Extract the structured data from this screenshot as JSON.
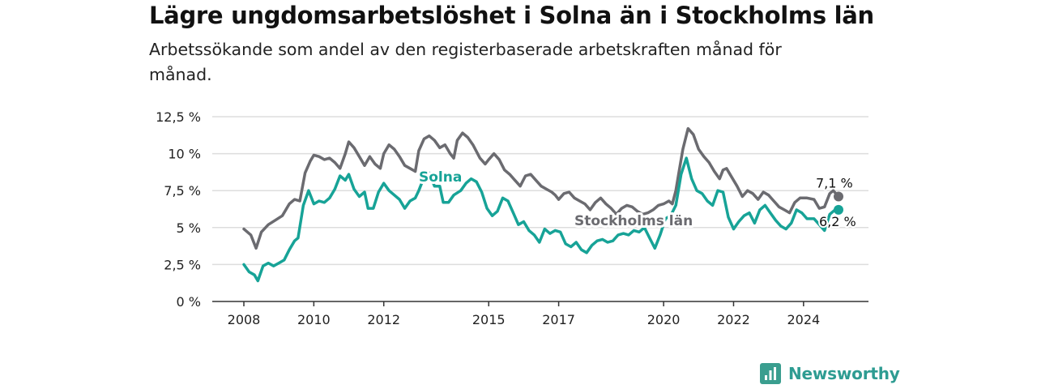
{
  "title": "Lägre ungdomsarbetslöshet i Solna än i Stockholms län",
  "subtitle": "Arbetssökande som andel av den registerbaserade arbetskraften månad för månad.",
  "brand": "Newsworthy",
  "colors": {
    "solna": "#17a397",
    "stockholm": "#6b6b70",
    "grid": "#dddddd",
    "axis": "#333333"
  },
  "chart_data": {
    "type": "line",
    "ylim": [
      0,
      12.5
    ],
    "y_ticks": [
      {
        "value": 0,
        "label": "0 %"
      },
      {
        "value": 2.5,
        "label": "2,5 %"
      },
      {
        "value": 5,
        "label": "5 %"
      },
      {
        "value": 7.5,
        "label": "7,5 %"
      },
      {
        "value": 10,
        "label": "10 %"
      },
      {
        "value": 12.5,
        "label": "12,5 %"
      }
    ],
    "x_ticks": [
      {
        "value": 2008,
        "label": "2008"
      },
      {
        "value": 2010,
        "label": "2010"
      },
      {
        "value": 2012,
        "label": "2012"
      },
      {
        "value": 2015,
        "label": "2015"
      },
      {
        "value": 2017,
        "label": "2017"
      },
      {
        "value": 2020,
        "label": "2020"
      },
      {
        "value": 2022,
        "label": "2022"
      },
      {
        "value": 2024,
        "label": "2024"
      }
    ],
    "grid": true,
    "series": [
      {
        "name": "Stockholms län",
        "end_label": "7,1 %",
        "points": [
          [
            2008.0,
            4.9
          ],
          [
            2008.2,
            4.5
          ],
          [
            2008.35,
            3.6
          ],
          [
            2008.5,
            4.7
          ],
          [
            2008.7,
            5.2
          ],
          [
            2008.9,
            5.5
          ],
          [
            2009.1,
            5.8
          ],
          [
            2009.3,
            6.6
          ],
          [
            2009.45,
            6.9
          ],
          [
            2009.6,
            6.8
          ],
          [
            2009.75,
            8.7
          ],
          [
            2009.9,
            9.5
          ],
          [
            2010.0,
            9.9
          ],
          [
            2010.15,
            9.8
          ],
          [
            2010.3,
            9.6
          ],
          [
            2010.45,
            9.7
          ],
          [
            2010.6,
            9.4
          ],
          [
            2010.75,
            9.0
          ],
          [
            2010.9,
            10.0
          ],
          [
            2011.0,
            10.8
          ],
          [
            2011.15,
            10.4
          ],
          [
            2011.3,
            9.8
          ],
          [
            2011.45,
            9.2
          ],
          [
            2011.6,
            9.8
          ],
          [
            2011.75,
            9.3
          ],
          [
            2011.9,
            9.0
          ],
          [
            2012.0,
            10.0
          ],
          [
            2012.15,
            10.6
          ],
          [
            2012.3,
            10.3
          ],
          [
            2012.45,
            9.8
          ],
          [
            2012.6,
            9.2
          ],
          [
            2012.75,
            9.0
          ],
          [
            2012.9,
            8.8
          ],
          [
            2013.0,
            10.2
          ],
          [
            2013.15,
            11.0
          ],
          [
            2013.3,
            11.2
          ],
          [
            2013.45,
            10.9
          ],
          [
            2013.6,
            10.4
          ],
          [
            2013.75,
            10.6
          ],
          [
            2013.9,
            10.0
          ],
          [
            2014.0,
            9.7
          ],
          [
            2014.1,
            10.9
          ],
          [
            2014.25,
            11.4
          ],
          [
            2014.4,
            11.1
          ],
          [
            2014.55,
            10.6
          ],
          [
            2014.75,
            9.7
          ],
          [
            2014.9,
            9.3
          ],
          [
            2015.0,
            9.6
          ],
          [
            2015.15,
            10.0
          ],
          [
            2015.3,
            9.6
          ],
          [
            2015.45,
            8.9
          ],
          [
            2015.6,
            8.6
          ],
          [
            2015.75,
            8.2
          ],
          [
            2015.9,
            7.8
          ],
          [
            2016.05,
            8.5
          ],
          [
            2016.2,
            8.6
          ],
          [
            2016.35,
            8.2
          ],
          [
            2016.5,
            7.8
          ],
          [
            2016.65,
            7.6
          ],
          [
            2016.8,
            7.4
          ],
          [
            2016.9,
            7.2
          ],
          [
            2017.0,
            6.9
          ],
          [
            2017.15,
            7.3
          ],
          [
            2017.3,
            7.4
          ],
          [
            2017.45,
            7.0
          ],
          [
            2017.6,
            6.8
          ],
          [
            2017.75,
            6.6
          ],
          [
            2017.9,
            6.2
          ],
          [
            2018.05,
            6.7
          ],
          [
            2018.2,
            7.0
          ],
          [
            2018.35,
            6.6
          ],
          [
            2018.5,
            6.3
          ],
          [
            2018.65,
            5.9
          ],
          [
            2018.8,
            6.3
          ],
          [
            2018.95,
            6.5
          ],
          [
            2019.1,
            6.4
          ],
          [
            2019.25,
            6.1
          ],
          [
            2019.4,
            5.9
          ],
          [
            2019.55,
            6.0
          ],
          [
            2019.7,
            6.2
          ],
          [
            2019.85,
            6.5
          ],
          [
            2020.0,
            6.6
          ],
          [
            2020.15,
            6.8
          ],
          [
            2020.25,
            6.6
          ],
          [
            2020.35,
            7.5
          ],
          [
            2020.45,
            8.9
          ],
          [
            2020.55,
            10.3
          ],
          [
            2020.7,
            11.7
          ],
          [
            2020.85,
            11.3
          ],
          [
            2021.0,
            10.3
          ],
          [
            2021.15,
            9.8
          ],
          [
            2021.3,
            9.4
          ],
          [
            2021.45,
            8.8
          ],
          [
            2021.6,
            8.3
          ],
          [
            2021.7,
            8.9
          ],
          [
            2021.8,
            9.0
          ],
          [
            2021.95,
            8.4
          ],
          [
            2022.1,
            7.8
          ],
          [
            2022.25,
            7.1
          ],
          [
            2022.4,
            7.5
          ],
          [
            2022.55,
            7.3
          ],
          [
            2022.7,
            6.9
          ],
          [
            2022.85,
            7.4
          ],
          [
            2023.0,
            7.2
          ],
          [
            2023.15,
            6.8
          ],
          [
            2023.3,
            6.4
          ],
          [
            2023.45,
            6.2
          ],
          [
            2023.6,
            6.0
          ],
          [
            2023.75,
            6.7
          ],
          [
            2023.9,
            7.0
          ],
          [
            2024.1,
            7.0
          ],
          [
            2024.3,
            6.9
          ],
          [
            2024.45,
            6.3
          ],
          [
            2024.6,
            6.4
          ],
          [
            2024.75,
            7.3
          ],
          [
            2024.85,
            7.5
          ],
          [
            2025.0,
            7.1
          ]
        ]
      },
      {
        "name": "Solna",
        "end_label": "6,2 %",
        "points": [
          [
            2008.0,
            2.5
          ],
          [
            2008.15,
            2.0
          ],
          [
            2008.3,
            1.8
          ],
          [
            2008.4,
            1.4
          ],
          [
            2008.55,
            2.4
          ],
          [
            2008.7,
            2.6
          ],
          [
            2008.85,
            2.4
          ],
          [
            2009.0,
            2.6
          ],
          [
            2009.15,
            2.8
          ],
          [
            2009.3,
            3.5
          ],
          [
            2009.45,
            4.1
          ],
          [
            2009.55,
            4.3
          ],
          [
            2009.7,
            6.5
          ],
          [
            2009.85,
            7.5
          ],
          [
            2010.0,
            6.6
          ],
          [
            2010.15,
            6.8
          ],
          [
            2010.3,
            6.7
          ],
          [
            2010.45,
            7.0
          ],
          [
            2010.6,
            7.6
          ],
          [
            2010.75,
            8.5
          ],
          [
            2010.9,
            8.2
          ],
          [
            2011.0,
            8.6
          ],
          [
            2011.15,
            7.6
          ],
          [
            2011.3,
            7.1
          ],
          [
            2011.45,
            7.4
          ],
          [
            2011.55,
            6.3
          ],
          [
            2011.7,
            6.3
          ],
          [
            2011.85,
            7.4
          ],
          [
            2012.0,
            8.0
          ],
          [
            2012.15,
            7.5
          ],
          [
            2012.3,
            7.2
          ],
          [
            2012.45,
            6.9
          ],
          [
            2012.6,
            6.3
          ],
          [
            2012.75,
            6.8
          ],
          [
            2012.9,
            7.0
          ],
          [
            2013.0,
            7.5
          ],
          [
            2013.15,
            8.4
          ],
          [
            2013.3,
            8.7
          ],
          [
            2013.45,
            7.8
          ],
          [
            2013.6,
            7.8
          ],
          [
            2013.7,
            6.7
          ],
          [
            2013.85,
            6.7
          ],
          [
            2014.0,
            7.2
          ],
          [
            2014.2,
            7.5
          ],
          [
            2014.35,
            8.0
          ],
          [
            2014.5,
            8.3
          ],
          [
            2014.65,
            8.1
          ],
          [
            2014.8,
            7.4
          ],
          [
            2014.95,
            6.3
          ],
          [
            2015.1,
            5.8
          ],
          [
            2015.25,
            6.1
          ],
          [
            2015.4,
            7.0
          ],
          [
            2015.55,
            6.8
          ],
          [
            2015.7,
            6.0
          ],
          [
            2015.85,
            5.2
          ],
          [
            2016.0,
            5.4
          ],
          [
            2016.15,
            4.8
          ],
          [
            2016.3,
            4.5
          ],
          [
            2016.45,
            4.0
          ],
          [
            2016.6,
            4.9
          ],
          [
            2016.75,
            4.6
          ],
          [
            2016.9,
            4.8
          ],
          [
            2017.05,
            4.7
          ],
          [
            2017.2,
            3.9
          ],
          [
            2017.35,
            3.7
          ],
          [
            2017.5,
            4.0
          ],
          [
            2017.65,
            3.5
          ],
          [
            2017.8,
            3.3
          ],
          [
            2017.95,
            3.8
          ],
          [
            2018.1,
            4.1
          ],
          [
            2018.25,
            4.2
          ],
          [
            2018.4,
            4.0
          ],
          [
            2018.55,
            4.1
          ],
          [
            2018.7,
            4.5
          ],
          [
            2018.85,
            4.6
          ],
          [
            2019.0,
            4.5
          ],
          [
            2019.15,
            4.8
          ],
          [
            2019.3,
            4.7
          ],
          [
            2019.45,
            5.0
          ],
          [
            2019.6,
            4.3
          ],
          [
            2019.75,
            3.6
          ],
          [
            2019.9,
            4.5
          ],
          [
            2020.05,
            5.6
          ],
          [
            2020.2,
            5.8
          ],
          [
            2020.35,
            6.5
          ],
          [
            2020.5,
            8.6
          ],
          [
            2020.65,
            9.7
          ],
          [
            2020.8,
            8.3
          ],
          [
            2020.95,
            7.5
          ],
          [
            2021.1,
            7.3
          ],
          [
            2021.25,
            6.8
          ],
          [
            2021.4,
            6.5
          ],
          [
            2021.55,
            7.5
          ],
          [
            2021.7,
            7.4
          ],
          [
            2021.85,
            5.7
          ],
          [
            2022.0,
            4.9
          ],
          [
            2022.15,
            5.4
          ],
          [
            2022.3,
            5.8
          ],
          [
            2022.45,
            6.0
          ],
          [
            2022.6,
            5.3
          ],
          [
            2022.75,
            6.2
          ],
          [
            2022.9,
            6.5
          ],
          [
            2023.05,
            6.0
          ],
          [
            2023.2,
            5.5
          ],
          [
            2023.35,
            5.1
          ],
          [
            2023.5,
            4.9
          ],
          [
            2023.65,
            5.3
          ],
          [
            2023.8,
            6.2
          ],
          [
            2023.95,
            6.0
          ],
          [
            2024.1,
            5.6
          ],
          [
            2024.3,
            5.6
          ],
          [
            2024.45,
            5.2
          ],
          [
            2024.6,
            4.8
          ],
          [
            2024.75,
            5.9
          ],
          [
            2024.9,
            6.2
          ],
          [
            2025.0,
            6.2
          ]
        ]
      }
    ]
  }
}
